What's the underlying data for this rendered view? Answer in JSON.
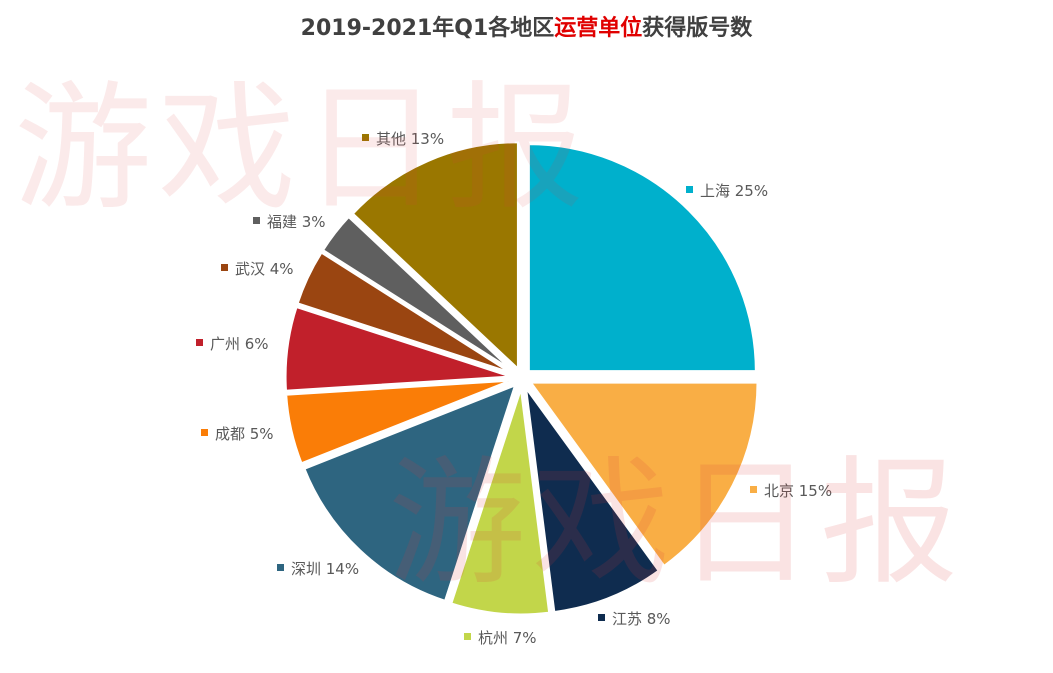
{
  "title": {
    "prefix": "2019-2021年Q1各地区",
    "highlight": "运营单位",
    "suffix": "获得版号数"
  },
  "watermarks": [
    "游戏日报",
    "游戏日报"
  ],
  "chart_data": {
    "type": "pie",
    "title": "2019-2021年Q1各地区运营单位获得版号数",
    "legend": "none",
    "slices": [
      {
        "name": "上海",
        "value": 25,
        "label": "25%",
        "color": "#00b0cc"
      },
      {
        "name": "北京",
        "value": 15,
        "label": "15%",
        "color": "#f9ae45"
      },
      {
        "name": "江苏",
        "value": 8,
        "label": "8%",
        "color": "#0f2c4f"
      },
      {
        "name": "杭州",
        "value": 7,
        "label": "7%",
        "color": "#c2d64a"
      },
      {
        "name": "深圳",
        "value": 14,
        "label": "14%",
        "color": "#2e6580"
      },
      {
        "name": "成都",
        "value": 5,
        "label": "5%",
        "color": "#fa7d07"
      },
      {
        "name": "广州",
        "value": 6,
        "label": "6%",
        "color": "#c1202b"
      },
      {
        "name": "武汉",
        "value": 4,
        "label": "4%",
        "color": "#9a4511"
      },
      {
        "name": "福建",
        "value": 3,
        "label": "3%",
        "color": "#5f5f5f"
      },
      {
        "name": "其他",
        "value": 13,
        "label": "13%",
        "color": "#9a7700"
      }
    ]
  }
}
